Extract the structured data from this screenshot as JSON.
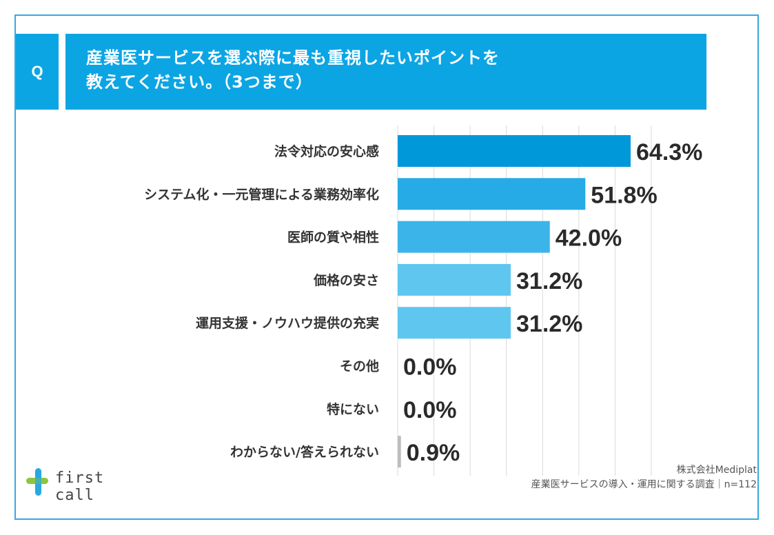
{
  "question": {
    "badge": "Q",
    "line1": "産業医サービスを選ぶ際に最も重視したいポイントを",
    "line2": "教えてください。（3つまで）"
  },
  "chart_data": {
    "type": "bar",
    "orientation": "horizontal",
    "categories": [
      "法令対応の安心感",
      "システム化・一元管理による業務効率化",
      "医師の質や相性",
      "価格の安さ",
      "運用支援・ノウハウ提供の充実",
      "その他",
      "特にない",
      "わからない/答えられない"
    ],
    "values": [
      64.3,
      51.8,
      42.0,
      31.2,
      31.2,
      0.0,
      0.0,
      0.9
    ],
    "value_labels": [
      "64.3%",
      "51.8%",
      "42.0%",
      "31.2%",
      "31.2%",
      "0.0%",
      "0.0%",
      "0.9%"
    ],
    "xlim": [
      0,
      70
    ],
    "grid": true,
    "colors": [
      "#0098d9",
      "#26abe6",
      "#3bb5e9",
      "#5fc6f0",
      "#5fc6f0",
      "#cccccc",
      "#cccccc",
      "#bdbdbd"
    ]
  },
  "footer": {
    "logo_text": "first call",
    "logo_colors": {
      "green": "#8cc63f",
      "blue": "#29a8e0"
    },
    "credit_company": "株式会社Mediplat",
    "credit_survey": "産業医サービスの導入・運用に関する調査｜n=112"
  }
}
